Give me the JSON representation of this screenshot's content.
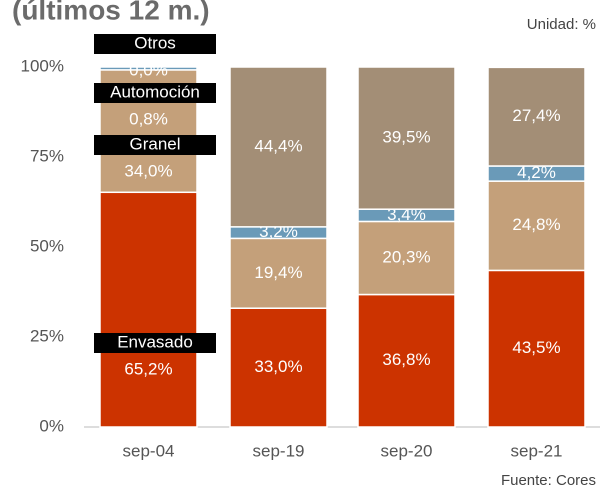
{
  "chart_data": {
    "type": "stacked_bar",
    "title": "(últimos 12 m.)",
    "subtitle": "Unidad: %",
    "source": "Fuente: Cores",
    "categories": [
      "sep-04",
      "sep-19",
      "sep-20",
      "sep-21"
    ],
    "series": [
      {
        "name": "Envasado",
        "color": "#cc3300",
        "values": [
          65.2,
          33.0,
          36.8,
          43.5
        ],
        "value_labels": [
          "65,2%",
          "33,0%",
          "36,8%",
          "43,5%"
        ]
      },
      {
        "name": "Granel",
        "color": "#c4a07a",
        "values": [
          34.0,
          19.4,
          20.3,
          24.8
        ],
        "value_labels": [
          "34,0%",
          "19,4%",
          "20,3%",
          "24,8%"
        ]
      },
      {
        "name": "Automoción",
        "color": "#6a9ab8",
        "values": [
          0.8,
          3.2,
          3.4,
          4.2
        ],
        "value_labels": [
          "0,8%",
          "3,2%",
          "3,4%",
          "4,2%"
        ]
      },
      {
        "name": "Otros",
        "color": "#a38e76",
        "values": [
          0.0,
          44.4,
          39.5,
          27.4
        ],
        "value_labels": [
          "0,0%",
          "44,4%",
          "39,5%",
          "27,4%"
        ]
      }
    ],
    "ylim": [
      0,
      100
    ],
    "yticks": [
      {
        "value": 0,
        "label": "0%"
      },
      {
        "value": 25,
        "label": "25%"
      },
      {
        "value": 50,
        "label": "50%"
      },
      {
        "value": 75,
        "label": "75%"
      },
      {
        "value": 100,
        "label": "100%"
      }
    ]
  }
}
